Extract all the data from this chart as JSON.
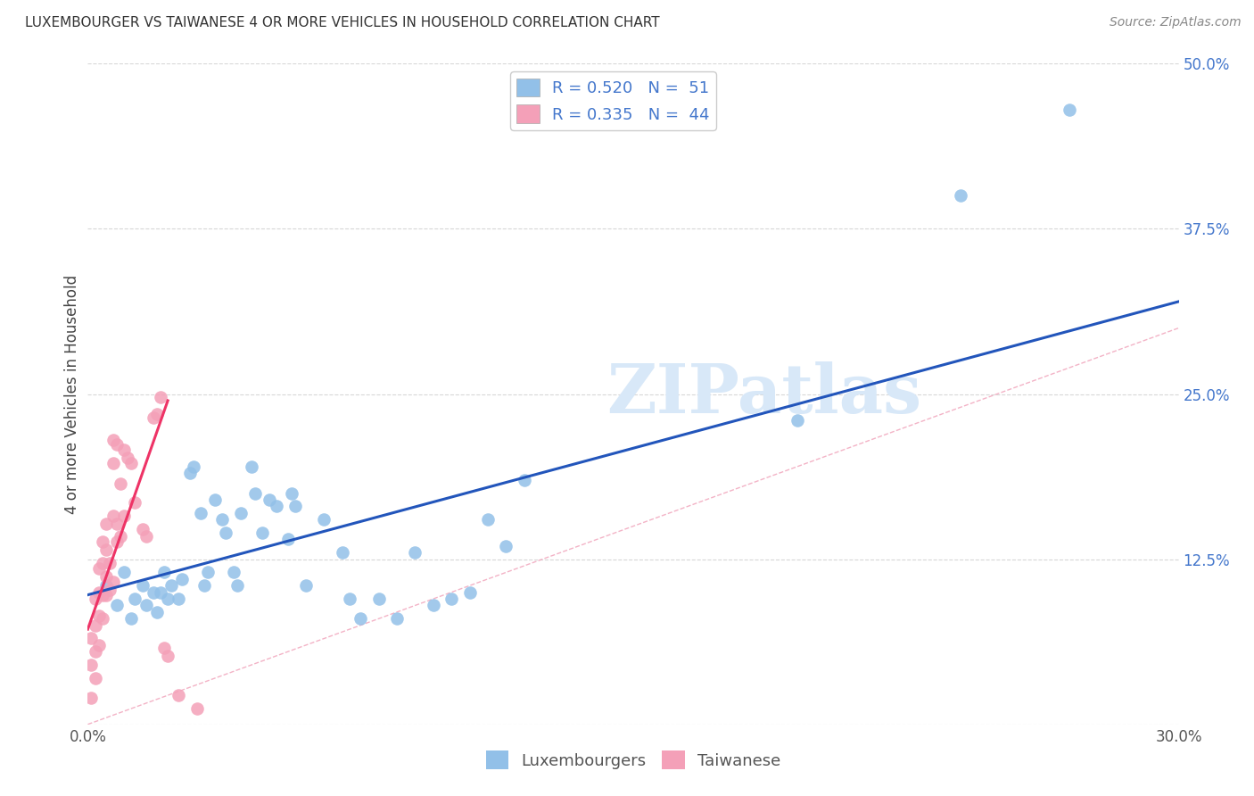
{
  "title": "LUXEMBOURGER VS TAIWANESE 4 OR MORE VEHICLES IN HOUSEHOLD CORRELATION CHART",
  "source": "Source: ZipAtlas.com",
  "ylabel": "4 or more Vehicles in Household",
  "xlim": [
    0.0,
    0.3
  ],
  "ylim": [
    0.0,
    0.5
  ],
  "xticks": [
    0.0,
    0.05,
    0.1,
    0.15,
    0.2,
    0.25,
    0.3
  ],
  "xticklabels": [
    "0.0%",
    "",
    "",
    "",
    "",
    "",
    "30.0%"
  ],
  "yticks": [
    0.0,
    0.125,
    0.25,
    0.375,
    0.5
  ],
  "yticklabels": [
    "",
    "12.5%",
    "25.0%",
    "37.5%",
    "50.0%"
  ],
  "legend_r_blue": "R = 0.520",
  "legend_n_blue": "N =  51",
  "legend_r_pink": "R = 0.335",
  "legend_n_pink": "N =  44",
  "blue_scatter_color": "#92C0E8",
  "pink_scatter_color": "#F4A0B8",
  "blue_line_color": "#2255BB",
  "pink_line_color": "#EE3366",
  "diag_line_color": "#F0A0B8",
  "ytick_color": "#4477CC",
  "watermark_color": "#D8E8F8",
  "watermark": "ZIPatlas",
  "blue_scatter": [
    [
      0.005,
      0.105
    ],
    [
      0.008,
      0.09
    ],
    [
      0.01,
      0.115
    ],
    [
      0.012,
      0.08
    ],
    [
      0.013,
      0.095
    ],
    [
      0.015,
      0.105
    ],
    [
      0.016,
      0.09
    ],
    [
      0.018,
      0.1
    ],
    [
      0.019,
      0.085
    ],
    [
      0.02,
      0.1
    ],
    [
      0.021,
      0.115
    ],
    [
      0.022,
      0.095
    ],
    [
      0.023,
      0.105
    ],
    [
      0.025,
      0.095
    ],
    [
      0.026,
      0.11
    ],
    [
      0.028,
      0.19
    ],
    [
      0.029,
      0.195
    ],
    [
      0.031,
      0.16
    ],
    [
      0.032,
      0.105
    ],
    [
      0.033,
      0.115
    ],
    [
      0.035,
      0.17
    ],
    [
      0.037,
      0.155
    ],
    [
      0.038,
      0.145
    ],
    [
      0.04,
      0.115
    ],
    [
      0.041,
      0.105
    ],
    [
      0.042,
      0.16
    ],
    [
      0.045,
      0.195
    ],
    [
      0.046,
      0.175
    ],
    [
      0.048,
      0.145
    ],
    [
      0.05,
      0.17
    ],
    [
      0.052,
      0.165
    ],
    [
      0.055,
      0.14
    ],
    [
      0.056,
      0.175
    ],
    [
      0.057,
      0.165
    ],
    [
      0.06,
      0.105
    ],
    [
      0.065,
      0.155
    ],
    [
      0.07,
      0.13
    ],
    [
      0.072,
      0.095
    ],
    [
      0.075,
      0.08
    ],
    [
      0.08,
      0.095
    ],
    [
      0.085,
      0.08
    ],
    [
      0.09,
      0.13
    ],
    [
      0.095,
      0.09
    ],
    [
      0.1,
      0.095
    ],
    [
      0.105,
      0.1
    ],
    [
      0.11,
      0.155
    ],
    [
      0.115,
      0.135
    ],
    [
      0.12,
      0.185
    ],
    [
      0.195,
      0.23
    ],
    [
      0.24,
      0.4
    ],
    [
      0.27,
      0.465
    ]
  ],
  "pink_scatter": [
    [
      0.001,
      0.02
    ],
    [
      0.001,
      0.045
    ],
    [
      0.001,
      0.065
    ],
    [
      0.002,
      0.035
    ],
    [
      0.002,
      0.055
    ],
    [
      0.002,
      0.075
    ],
    [
      0.002,
      0.095
    ],
    [
      0.003,
      0.06
    ],
    [
      0.003,
      0.082
    ],
    [
      0.003,
      0.1
    ],
    [
      0.003,
      0.118
    ],
    [
      0.004,
      0.08
    ],
    [
      0.004,
      0.098
    ],
    [
      0.004,
      0.122
    ],
    [
      0.004,
      0.138
    ],
    [
      0.005,
      0.098
    ],
    [
      0.005,
      0.112
    ],
    [
      0.005,
      0.132
    ],
    [
      0.005,
      0.152
    ],
    [
      0.006,
      0.102
    ],
    [
      0.006,
      0.122
    ],
    [
      0.007,
      0.108
    ],
    [
      0.007,
      0.158
    ],
    [
      0.007,
      0.198
    ],
    [
      0.007,
      0.215
    ],
    [
      0.008,
      0.138
    ],
    [
      0.008,
      0.152
    ],
    [
      0.008,
      0.212
    ],
    [
      0.009,
      0.142
    ],
    [
      0.009,
      0.182
    ],
    [
      0.01,
      0.158
    ],
    [
      0.01,
      0.208
    ],
    [
      0.011,
      0.202
    ],
    [
      0.012,
      0.198
    ],
    [
      0.013,
      0.168
    ],
    [
      0.015,
      0.148
    ],
    [
      0.016,
      0.142
    ],
    [
      0.018,
      0.232
    ],
    [
      0.019,
      0.235
    ],
    [
      0.02,
      0.248
    ],
    [
      0.021,
      0.058
    ],
    [
      0.022,
      0.052
    ],
    [
      0.025,
      0.022
    ],
    [
      0.03,
      0.012
    ]
  ],
  "blue_line": [
    [
      0.0,
      0.098
    ],
    [
      0.3,
      0.32
    ]
  ],
  "pink_line": [
    [
      0.0,
      0.072
    ],
    [
      0.022,
      0.245
    ]
  ],
  "diagonal_line": [
    [
      0.0,
      0.0
    ],
    [
      0.3,
      0.3
    ]
  ]
}
